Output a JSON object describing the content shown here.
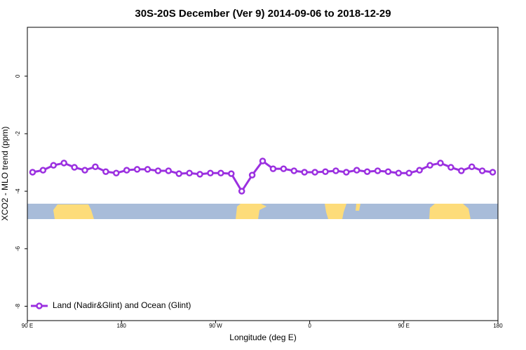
{
  "chart_data": {
    "type": "line",
    "title": "30S-20S December (Ver 9)   2014-09-06 to 2018-12-29",
    "x_label": "Longitude (deg E)",
    "y_label": "XCO2 - MLO trend (ppm)",
    "xlim": [
      90,
      540
    ],
    "ylim": [
      -8.5,
      1.7
    ],
    "xticks": [
      {
        "value": 90,
        "label": "90 E"
      },
      180,
      {
        "value": 270,
        "label": "90 W"
      },
      {
        "value": 360,
        "label": "0"
      },
      {
        "value": 450,
        "label": "90 E"
      },
      {
        "value": 540,
        "label": "180"
      }
    ],
    "yticks": [
      0,
      -2,
      -4,
      -6,
      -8
    ],
    "legend": "bottom-left",
    "series": [
      {
        "name": "Land (Nadir&Glint) and Ocean (Glint)",
        "color": "#9b30e0",
        "x": [
          95,
          105,
          115,
          125,
          135,
          145,
          155,
          165,
          175,
          185,
          195,
          205,
          215,
          225,
          235,
          245,
          255,
          265,
          275,
          285,
          295,
          305,
          315,
          325,
          335,
          345,
          355,
          365,
          375,
          385,
          395,
          405,
          415,
          425,
          435,
          445,
          455,
          465,
          475,
          485,
          495,
          505,
          515,
          525,
          535
        ],
        "values": [
          -3.34,
          -3.27,
          -3.1,
          -3.02,
          -3.17,
          -3.27,
          -3.15,
          -3.32,
          -3.37,
          -3.27,
          -3.24,
          -3.24,
          -3.29,
          -3.29,
          -3.39,
          -3.37,
          -3.41,
          -3.37,
          -3.37,
          -3.39,
          -4.0,
          -3.44,
          -2.95,
          -3.22,
          -3.22,
          -3.29,
          -3.34,
          -3.34,
          -3.32,
          -3.29,
          -3.34,
          -3.27,
          -3.32,
          -3.29,
          -3.32,
          -3.37,
          -3.37,
          -3.27,
          -3.1,
          -3.02,
          -3.17,
          -3.29,
          -3.15,
          -3.29,
          -3.34
        ]
      }
    ]
  }
}
